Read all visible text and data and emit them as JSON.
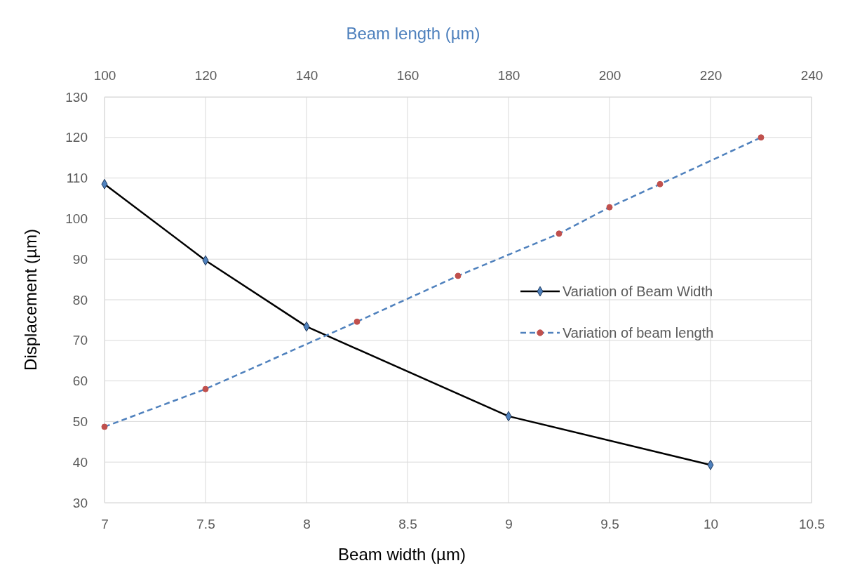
{
  "chart_data": {
    "type": "line",
    "xlabel": "Beam width (µm)",
    "x2label": "Beam length (µm)",
    "ylabel": "Displacement (µm)",
    "xlim": [
      7,
      10.5
    ],
    "xticks": [
      7,
      7.5,
      8,
      8.5,
      9,
      9.5,
      10,
      10.5
    ],
    "x2lim": [
      100,
      240
    ],
    "x2ticks": [
      100,
      120,
      140,
      160,
      180,
      200,
      220,
      240
    ],
    "ylim": [
      30,
      130
    ],
    "yticks": [
      30,
      40,
      50,
      60,
      70,
      80,
      90,
      100,
      110,
      120,
      130
    ],
    "grid": true,
    "legend": "right",
    "series": [
      {
        "name": "Variation of Beam Width",
        "color": "#000000",
        "marker": "diamond",
        "line_style": "solid",
        "x": [
          7,
          7.5,
          8,
          9,
          10
        ],
        "values": [
          108.5,
          89.7,
          73.4,
          51.3,
          39.3
        ]
      },
      {
        "name": "Variation of beam length",
        "color": "#4f81bd",
        "marker": "circle",
        "line_style": "dashed",
        "axis": "x2",
        "x": [
          100,
          120,
          150,
          170,
          190,
          200,
          210,
          230
        ],
        "values": [
          48.7,
          58.0,
          74.6,
          85.9,
          96.3,
          102.8,
          108.5,
          120.0
        ]
      }
    ]
  }
}
